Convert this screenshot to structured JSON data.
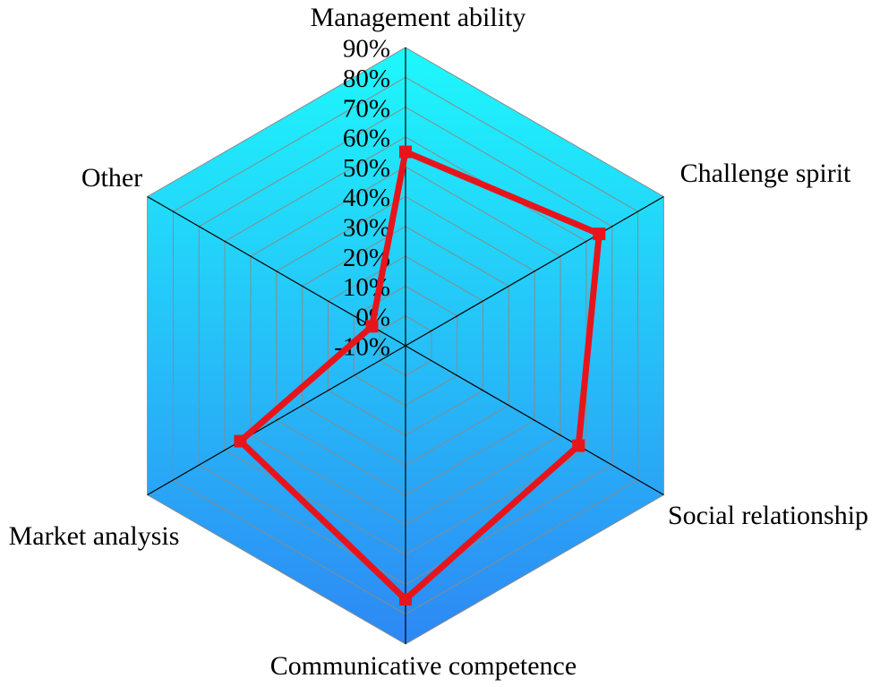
{
  "chart_data": {
    "type": "radar",
    "categories": [
      "Management ability",
      "Challenge spirit",
      "Social relationship",
      "Communicative competence",
      "Market analysis",
      "Other"
    ],
    "series": [
      {
        "color": "#e8141c",
        "values": [
          55,
          65,
          57,
          75,
          54,
          3
        ]
      }
    ],
    "ylim": [
      -10,
      90
    ],
    "yticks": [
      {
        "value": -10,
        "label": "-10%"
      },
      {
        "value": 0,
        "label": "0%"
      },
      {
        "value": 10,
        "label": "10%"
      },
      {
        "value": 20,
        "label": "20%"
      },
      {
        "value": 30,
        "label": "30%"
      },
      {
        "value": 40,
        "label": "40%"
      },
      {
        "value": 50,
        "label": "50%"
      },
      {
        "value": 60,
        "label": "60%"
      },
      {
        "value": 70,
        "label": "70%"
      },
      {
        "value": 80,
        "label": "80%"
      },
      {
        "value": 90,
        "label": "90%"
      }
    ],
    "grid": true
  }
}
